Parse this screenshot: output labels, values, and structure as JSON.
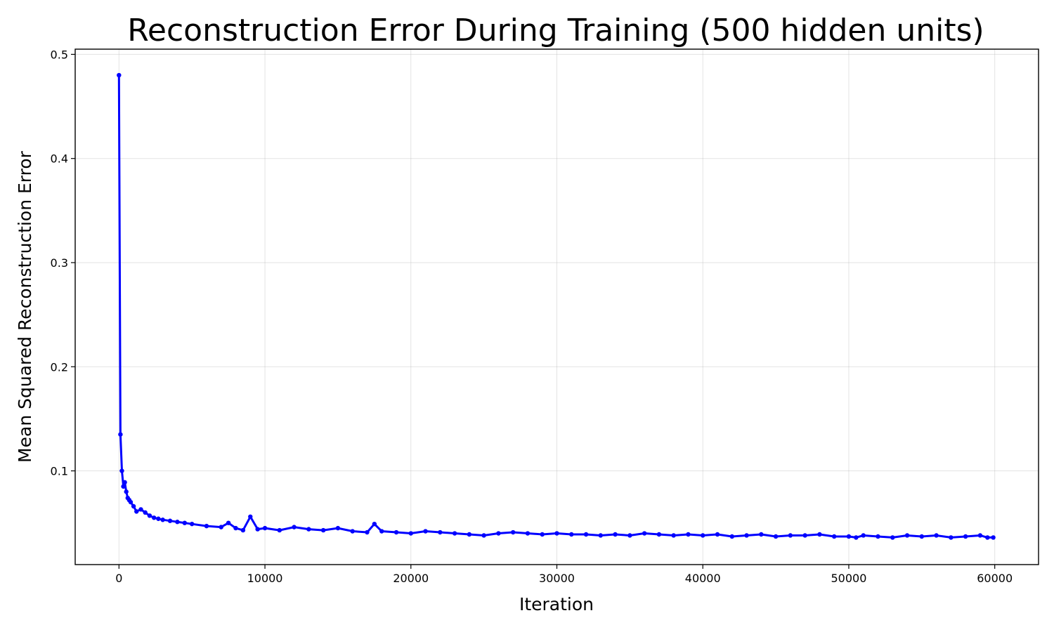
{
  "chart_data": {
    "type": "line",
    "title": "Reconstruction Error During Training (500 hidden units)",
    "xlabel": "Iteration",
    "ylabel": "Mean Squared Reconstruction Error",
    "xlim": [
      -3000,
      63000
    ],
    "ylim": [
      0.01,
      0.505
    ],
    "xticks": [
      0,
      10000,
      20000,
      30000,
      40000,
      50000,
      60000
    ],
    "xtick_labels": [
      "0",
      "10000",
      "20000",
      "30000",
      "40000",
      "50000",
      "60000"
    ],
    "yticks": [
      0.1,
      0.2,
      0.3,
      0.4,
      0.5
    ],
    "ytick_labels": [
      "0.1",
      "0.2",
      "0.3",
      "0.4",
      "0.5"
    ],
    "grid": true,
    "color": "#0000ff",
    "series": [
      {
        "marker": "circle",
        "x": [
          0,
          100,
          200,
          300,
          400,
          500,
          600,
          700,
          800,
          1000,
          1200,
          1500,
          1800,
          2100,
          2400,
          2700,
          3000,
          3500,
          4000,
          4500,
          5000,
          6000,
          7000,
          7500,
          8000,
          8500,
          9000,
          9500,
          10000,
          11000,
          12000,
          13000,
          14000,
          15000,
          16000,
          17000,
          17500,
          18000,
          19000,
          20000,
          21000,
          22000,
          23000,
          24000,
          25000,
          26000,
          27000,
          28000,
          29000,
          30000,
          31000,
          32000,
          33000,
          34000,
          35000,
          36000,
          37000,
          38000,
          39000,
          40000,
          41000,
          42000,
          43000,
          44000,
          45000,
          46000,
          47000,
          48000,
          49000,
          50000,
          50500,
          51000,
          52000,
          53000,
          54000,
          55000,
          56000,
          57000,
          58000,
          59000,
          59500,
          59900
        ],
        "y": [
          0.48,
          0.135,
          0.1,
          0.085,
          0.089,
          0.08,
          0.074,
          0.072,
          0.07,
          0.066,
          0.061,
          0.063,
          0.06,
          0.057,
          0.055,
          0.054,
          0.053,
          0.052,
          0.051,
          0.05,
          0.049,
          0.047,
          0.046,
          0.05,
          0.045,
          0.043,
          0.056,
          0.044,
          0.045,
          0.043,
          0.046,
          0.044,
          0.043,
          0.045,
          0.042,
          0.041,
          0.049,
          0.042,
          0.041,
          0.04,
          0.042,
          0.041,
          0.04,
          0.039,
          0.038,
          0.04,
          0.041,
          0.04,
          0.039,
          0.04,
          0.039,
          0.039,
          0.038,
          0.039,
          0.038,
          0.04,
          0.039,
          0.038,
          0.039,
          0.038,
          0.039,
          0.037,
          0.038,
          0.039,
          0.037,
          0.038,
          0.038,
          0.039,
          0.037,
          0.037,
          0.036,
          0.038,
          0.037,
          0.036,
          0.038,
          0.037,
          0.038,
          0.036,
          0.037,
          0.038,
          0.036,
          0.036
        ]
      }
    ]
  }
}
